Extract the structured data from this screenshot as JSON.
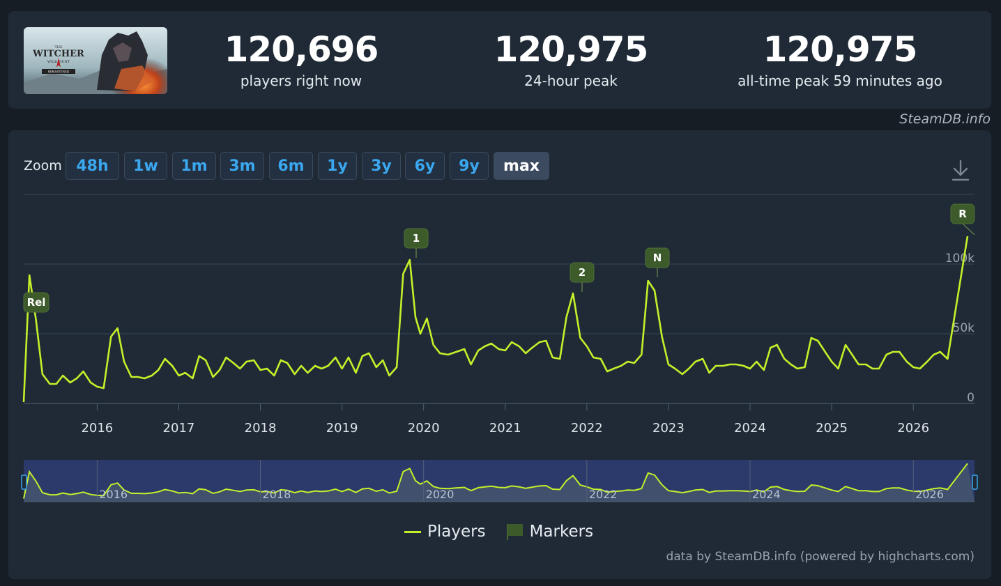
{
  "stats": {
    "current": {
      "value": "120,696",
      "label": "players right now"
    },
    "peak24": {
      "value": "120,975",
      "label": "24-hour peak"
    },
    "alltime": {
      "value": "120,975",
      "label": "all-time peak 59 minutes ago"
    }
  },
  "brand": "SteamDB.info",
  "game_logo": {
    "line1": "THE",
    "line2": "WITCHER",
    "line3": "WILD  HUNT",
    "line4": "REMASTERED"
  },
  "zoom": {
    "label": "Zoom",
    "buttons": [
      "48h",
      "1w",
      "1m",
      "3m",
      "6m",
      "1y",
      "3y",
      "6y",
      "9y",
      "max"
    ],
    "active": "max"
  },
  "icons": {
    "download": "download-icon"
  },
  "colors": {
    "line": "#c4f02a",
    "marker": "#3d5a2a",
    "accent": "#3ba7ef"
  },
  "legend": {
    "players": "Players",
    "markers": "Markers"
  },
  "credit": "data by SteamDB.info (powered by highcharts.com)",
  "chart_data": {
    "type": "line",
    "ylim": [
      0,
      130000
    ],
    "xlim": [
      2015.1,
      2026.75
    ],
    "yticks": [
      {
        "value": 0,
        "label": "0"
      },
      {
        "value": 50000,
        "label": "50k"
      },
      {
        "value": 100000,
        "label": "100k"
      }
    ],
    "xticks": [
      "2016",
      "2017",
      "2018",
      "2019",
      "2020",
      "2021",
      "2022",
      "2023",
      "2024",
      "2025",
      "2026"
    ],
    "navigator_ticks": [
      "2016",
      "2018",
      "2020",
      "2022",
      "2024",
      "2026"
    ],
    "markers": [
      {
        "label": "Rel",
        "x": 2015.17,
        "y": 72000
      },
      {
        "label": "1",
        "x": 2020.0,
        "y": 103000
      },
      {
        "label": "2",
        "x": 2022.0,
        "y": 79000
      },
      {
        "label": "N",
        "x": 2022.9,
        "y": 89000
      },
      {
        "label": "R",
        "x": 2026.73,
        "y": 121000
      }
    ],
    "series": [
      {
        "name": "Players",
        "points": [
          [
            2015.1,
            1000
          ],
          [
            2015.17,
            92000
          ],
          [
            2015.25,
            60000
          ],
          [
            2015.33,
            21000
          ],
          [
            2015.42,
            14000
          ],
          [
            2015.5,
            14000
          ],
          [
            2015.58,
            20000
          ],
          [
            2015.67,
            15000
          ],
          [
            2015.75,
            18000
          ],
          [
            2015.83,
            23000
          ],
          [
            2015.92,
            15000
          ],
          [
            2016.0,
            12000
          ],
          [
            2016.08,
            11000
          ],
          [
            2016.17,
            48000
          ],
          [
            2016.25,
            54000
          ],
          [
            2016.33,
            30000
          ],
          [
            2016.42,
            19000
          ],
          [
            2016.5,
            19000
          ],
          [
            2016.58,
            18000
          ],
          [
            2016.67,
            20000
          ],
          [
            2016.75,
            24000
          ],
          [
            2016.83,
            32000
          ],
          [
            2016.92,
            27000
          ],
          [
            2017.0,
            20000
          ],
          [
            2017.08,
            22000
          ],
          [
            2017.17,
            18000
          ],
          [
            2017.25,
            34000
          ],
          [
            2017.33,
            31000
          ],
          [
            2017.42,
            19000
          ],
          [
            2017.5,
            24000
          ],
          [
            2017.58,
            33000
          ],
          [
            2017.67,
            29000
          ],
          [
            2017.75,
            25000
          ],
          [
            2017.83,
            30000
          ],
          [
            2017.92,
            31000
          ],
          [
            2018.0,
            24000
          ],
          [
            2018.08,
            25000
          ],
          [
            2018.17,
            20000
          ],
          [
            2018.25,
            31000
          ],
          [
            2018.33,
            29000
          ],
          [
            2018.42,
            21000
          ],
          [
            2018.5,
            27000
          ],
          [
            2018.58,
            22000
          ],
          [
            2018.67,
            27000
          ],
          [
            2018.75,
            25000
          ],
          [
            2018.83,
            27000
          ],
          [
            2018.92,
            33000
          ],
          [
            2019.0,
            25000
          ],
          [
            2019.08,
            33000
          ],
          [
            2019.17,
            22000
          ],
          [
            2019.25,
            34000
          ],
          [
            2019.33,
            36000
          ],
          [
            2019.42,
            26000
          ],
          [
            2019.5,
            31000
          ],
          [
            2019.58,
            20000
          ],
          [
            2019.67,
            26000
          ],
          [
            2019.75,
            93000
          ],
          [
            2019.83,
            103000
          ],
          [
            2019.9,
            62000
          ],
          [
            2019.96,
            50000
          ],
          [
            2020.04,
            61000
          ],
          [
            2020.12,
            42000
          ],
          [
            2020.2,
            36000
          ],
          [
            2020.3,
            35000
          ],
          [
            2020.4,
            37000
          ],
          [
            2020.5,
            39000
          ],
          [
            2020.58,
            28000
          ],
          [
            2020.67,
            38000
          ],
          [
            2020.75,
            41000
          ],
          [
            2020.83,
            43000
          ],
          [
            2020.92,
            39000
          ],
          [
            2021.0,
            38000
          ],
          [
            2021.08,
            44000
          ],
          [
            2021.17,
            41000
          ],
          [
            2021.25,
            36000
          ],
          [
            2021.33,
            40000
          ],
          [
            2021.42,
            44000
          ],
          [
            2021.5,
            45000
          ],
          [
            2021.58,
            33000
          ],
          [
            2021.67,
            32000
          ],
          [
            2021.75,
            62000
          ],
          [
            2021.83,
            79000
          ],
          [
            2021.92,
            47000
          ],
          [
            2022.0,
            41000
          ],
          [
            2022.08,
            33000
          ],
          [
            2022.17,
            32000
          ],
          [
            2022.25,
            23000
          ],
          [
            2022.33,
            25000
          ],
          [
            2022.42,
            27000
          ],
          [
            2022.5,
            30000
          ],
          [
            2022.58,
            29000
          ],
          [
            2022.67,
            35000
          ],
          [
            2022.75,
            88000
          ],
          [
            2022.83,
            81000
          ],
          [
            2022.92,
            48000
          ],
          [
            2023.0,
            28000
          ],
          [
            2023.08,
            25000
          ],
          [
            2023.17,
            21000
          ],
          [
            2023.25,
            25000
          ],
          [
            2023.33,
            30000
          ],
          [
            2023.42,
            32000
          ],
          [
            2023.5,
            22000
          ],
          [
            2023.58,
            27000
          ],
          [
            2023.67,
            27000
          ],
          [
            2023.75,
            28000
          ],
          [
            2023.83,
            28000
          ],
          [
            2023.92,
            27000
          ],
          [
            2024.0,
            25000
          ],
          [
            2024.08,
            30000
          ],
          [
            2024.17,
            24000
          ],
          [
            2024.25,
            40000
          ],
          [
            2024.33,
            42000
          ],
          [
            2024.42,
            32000
          ],
          [
            2024.5,
            28000
          ],
          [
            2024.58,
            25000
          ],
          [
            2024.67,
            26000
          ],
          [
            2024.75,
            47000
          ],
          [
            2024.83,
            45000
          ],
          [
            2024.92,
            37000
          ],
          [
            2025.0,
            30000
          ],
          [
            2025.08,
            25000
          ],
          [
            2025.17,
            42000
          ],
          [
            2025.25,
            35000
          ],
          [
            2025.33,
            28000
          ],
          [
            2025.42,
            28000
          ],
          [
            2025.5,
            25000
          ],
          [
            2025.58,
            25000
          ],
          [
            2025.67,
            35000
          ],
          [
            2025.75,
            37000
          ],
          [
            2025.83,
            37000
          ],
          [
            2025.92,
            30000
          ],
          [
            2026.0,
            26000
          ],
          [
            2026.08,
            25000
          ],
          [
            2026.17,
            30000
          ],
          [
            2026.25,
            35000
          ],
          [
            2026.33,
            37000
          ],
          [
            2026.42,
            32000
          ],
          [
            2026.5,
            120000
          ]
        ]
      }
    ]
  }
}
